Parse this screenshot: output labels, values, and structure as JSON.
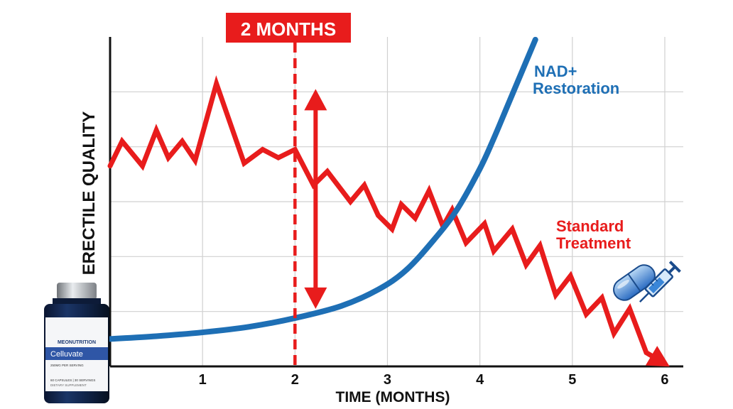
{
  "chart_data": {
    "type": "line",
    "title": "",
    "xlabel": "TIME (MONTHS)",
    "ylabel": "ERECTILE QUALITY",
    "xlim": [
      0,
      6.2
    ],
    "ylim": [
      0,
      6
    ],
    "x_ticks": [
      "1",
      "2",
      "3",
      "4",
      "5",
      "6"
    ],
    "x_tick_values": [
      1,
      2,
      3,
      4,
      5,
      6
    ],
    "grid": true,
    "colors": {
      "red": "#e81c1c",
      "blue": "#1e6fb5",
      "grid": "#d0d0d0",
      "axis": "#111111"
    },
    "series": [
      {
        "name": "Standard Treatment",
        "color": "#e81c1c",
        "x": [
          0,
          0.13,
          0.35,
          0.5,
          0.63,
          0.78,
          0.92,
          1.15,
          1.45,
          1.65,
          1.82,
          2.0,
          2.2,
          2.35,
          2.6,
          2.75,
          2.9,
          3.05,
          3.15,
          3.3,
          3.45,
          3.6,
          3.7,
          3.85,
          4.05,
          4.15,
          4.35,
          4.5,
          4.65,
          4.82,
          4.98,
          5.15,
          5.32,
          5.45,
          5.62,
          5.8,
          6.0
        ],
        "y": [
          3.65,
          4.1,
          3.65,
          4.3,
          3.8,
          4.1,
          3.75,
          5.15,
          3.7,
          3.95,
          3.8,
          3.95,
          3.3,
          3.55,
          3.0,
          3.3,
          2.75,
          2.5,
          2.95,
          2.7,
          3.2,
          2.55,
          2.85,
          2.25,
          2.6,
          2.1,
          2.5,
          1.85,
          2.2,
          1.3,
          1.65,
          0.95,
          1.25,
          0.6,
          1.05,
          0.25,
          0.05
        ]
      },
      {
        "name": "NAD+ Restoration",
        "color": "#1e6fb5",
        "x": [
          0,
          0.5,
          1.0,
          1.5,
          2.0,
          2.5,
          2.9,
          3.2,
          3.5,
          3.75,
          4.0,
          4.15,
          4.3,
          4.45,
          4.6
        ],
        "y": [
          0.5,
          0.55,
          0.62,
          0.72,
          0.88,
          1.1,
          1.4,
          1.75,
          2.3,
          2.85,
          3.6,
          4.15,
          4.75,
          5.35,
          5.95
        ]
      }
    ],
    "annotations": [
      {
        "type": "vline",
        "x": 2,
        "label": "2 MONTHS",
        "style": "dashed",
        "color": "#e81c1c"
      },
      {
        "type": "double-arrow",
        "x": 2.2,
        "y_from": 1.1,
        "y_to": 5.0,
        "color": "#e81c1c"
      }
    ]
  },
  "labels": {
    "months_marker": "2 MONTHS",
    "blue_label_line1": "NAD+",
    "blue_label_line2": "Restoration",
    "red_label_line1": "Standard",
    "red_label_line2": "Treatment"
  },
  "product": {
    "brand": "MEONUTRITION",
    "name": "Celluvate",
    "serving": "250MG PER SERVING",
    "count": "60 CAPSULES | 30 SERVINGS",
    "type": "DIETARY SUPPLEMENT"
  },
  "icons": [
    "pill-icon",
    "syringe-icon",
    "bottle-icon"
  ]
}
